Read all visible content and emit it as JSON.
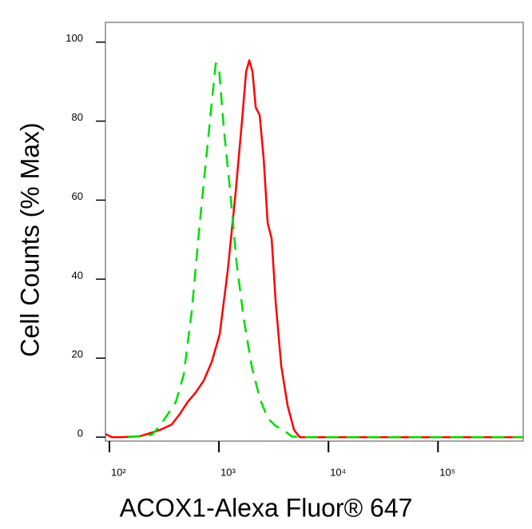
{
  "chart_data": {
    "type": "line",
    "xlabel": "ACOX1-Alexa Fluor® 647",
    "ylabel": "Cell Counts (% Max)",
    "xscale": "log",
    "xlim": [
      92,
      600000
    ],
    "ylim": [
      -1,
      105
    ],
    "xticks": [
      {
        "value": 100,
        "label": "10²"
      },
      {
        "value": 1000,
        "label": "10³"
      },
      {
        "value": 10000,
        "label": "10⁴"
      },
      {
        "value": 100000,
        "label": "10⁵"
      }
    ],
    "yticks": [
      0,
      20,
      40,
      60,
      80,
      100
    ],
    "series": [
      {
        "color": "#ff0000",
        "dash": false,
        "x": [
          92,
          105,
          124,
          189,
          288,
          371,
          438,
          518,
          614,
          726,
          859,
          1016,
          1202,
          1422,
          1628,
          1771,
          1894,
          2026,
          2167,
          2356,
          2563,
          2788,
          3033,
          3299,
          3710,
          4243,
          4856,
          5460,
          8318,
          600000
        ],
        "values": [
          0.8,
          0,
          0,
          0.2,
          1.8,
          3.2,
          5.8,
          8.9,
          11.3,
          14.3,
          19,
          26,
          42,
          62,
          80.4,
          92.5,
          95.4,
          92.5,
          83.5,
          81.5,
          70.4,
          54.2,
          50.2,
          34,
          18,
          7.9,
          1.8,
          0,
          0,
          0
        ]
      },
      {
        "color": "#00dd00",
        "dash": true,
        "x": [
          147,
          244,
          288,
          341,
          404,
          478,
          565,
          668,
          765,
          859,
          935,
          1000,
          1107,
          1266,
          1449,
          1684,
          1991,
          2356,
          2788,
          3299,
          3898,
          4613,
          5460,
          8318,
          600000
        ],
        "values": [
          0,
          0.6,
          2.8,
          5.8,
          8.9,
          15.9,
          32,
          54.2,
          70.4,
          84.5,
          94.6,
          93.5,
          78.4,
          62.3,
          44.2,
          30,
          18,
          9.9,
          4.8,
          2.8,
          1.8,
          0.2,
          0,
          0,
          0
        ]
      }
    ]
  }
}
